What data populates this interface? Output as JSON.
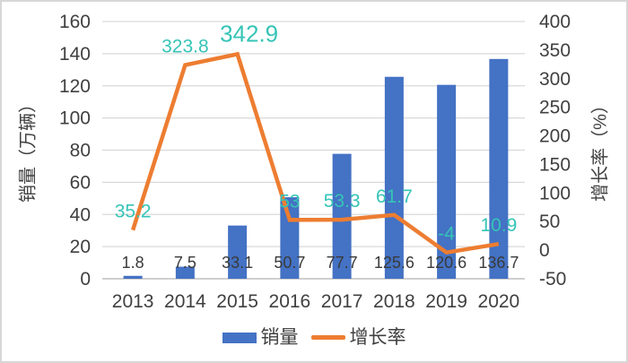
{
  "chart_data": {
    "type": "combo",
    "title": "",
    "categories": [
      "2013",
      "2014",
      "2015",
      "2016",
      "2017",
      "2018",
      "2019",
      "2020"
    ],
    "series": [
      {
        "name": "销量",
        "chart_type": "bar",
        "axis": "left",
        "color": "#4472C4",
        "values": [
          1.8,
          7.5,
          33.1,
          50.7,
          77.7,
          125.6,
          120.6,
          136.7
        ],
        "labels": [
          "1.8",
          "7.5",
          "33.1",
          "50.7",
          "77.7",
          "125.6",
          "120.6",
          "136.7"
        ],
        "label_color": "#3a3a3a"
      },
      {
        "name": "增长率",
        "chart_type": "line",
        "axis": "right",
        "color": "#ED7D31",
        "values": [
          35.2,
          323.8,
          342.9,
          53,
          53.3,
          61.7,
          -4,
          10.9
        ],
        "labels": [
          "35.2",
          "323.8",
          "342.9",
          "53",
          "53.3",
          "61.7",
          "-4",
          "10.9"
        ],
        "label_color": "#35C4B6"
      }
    ],
    "axes": {
      "left": {
        "title": "销量（万辆）",
        "min": 0,
        "max": 160,
        "step": 20,
        "ticks": [
          "0",
          "20",
          "40",
          "60",
          "80",
          "100",
          "120",
          "140",
          "160"
        ]
      },
      "right": {
        "title": "增长率（%）",
        "min": -50,
        "max": 400,
        "step": 50,
        "ticks": [
          "-50",
          "0",
          "50",
          "100",
          "150",
          "200",
          "250",
          "300",
          "350",
          "400"
        ]
      }
    },
    "grid": true,
    "legend_position": "bottom",
    "colors": {
      "gridline": "#D9D9D9",
      "axis_line": "#BFBFBF",
      "tick_text": "#404040"
    }
  }
}
